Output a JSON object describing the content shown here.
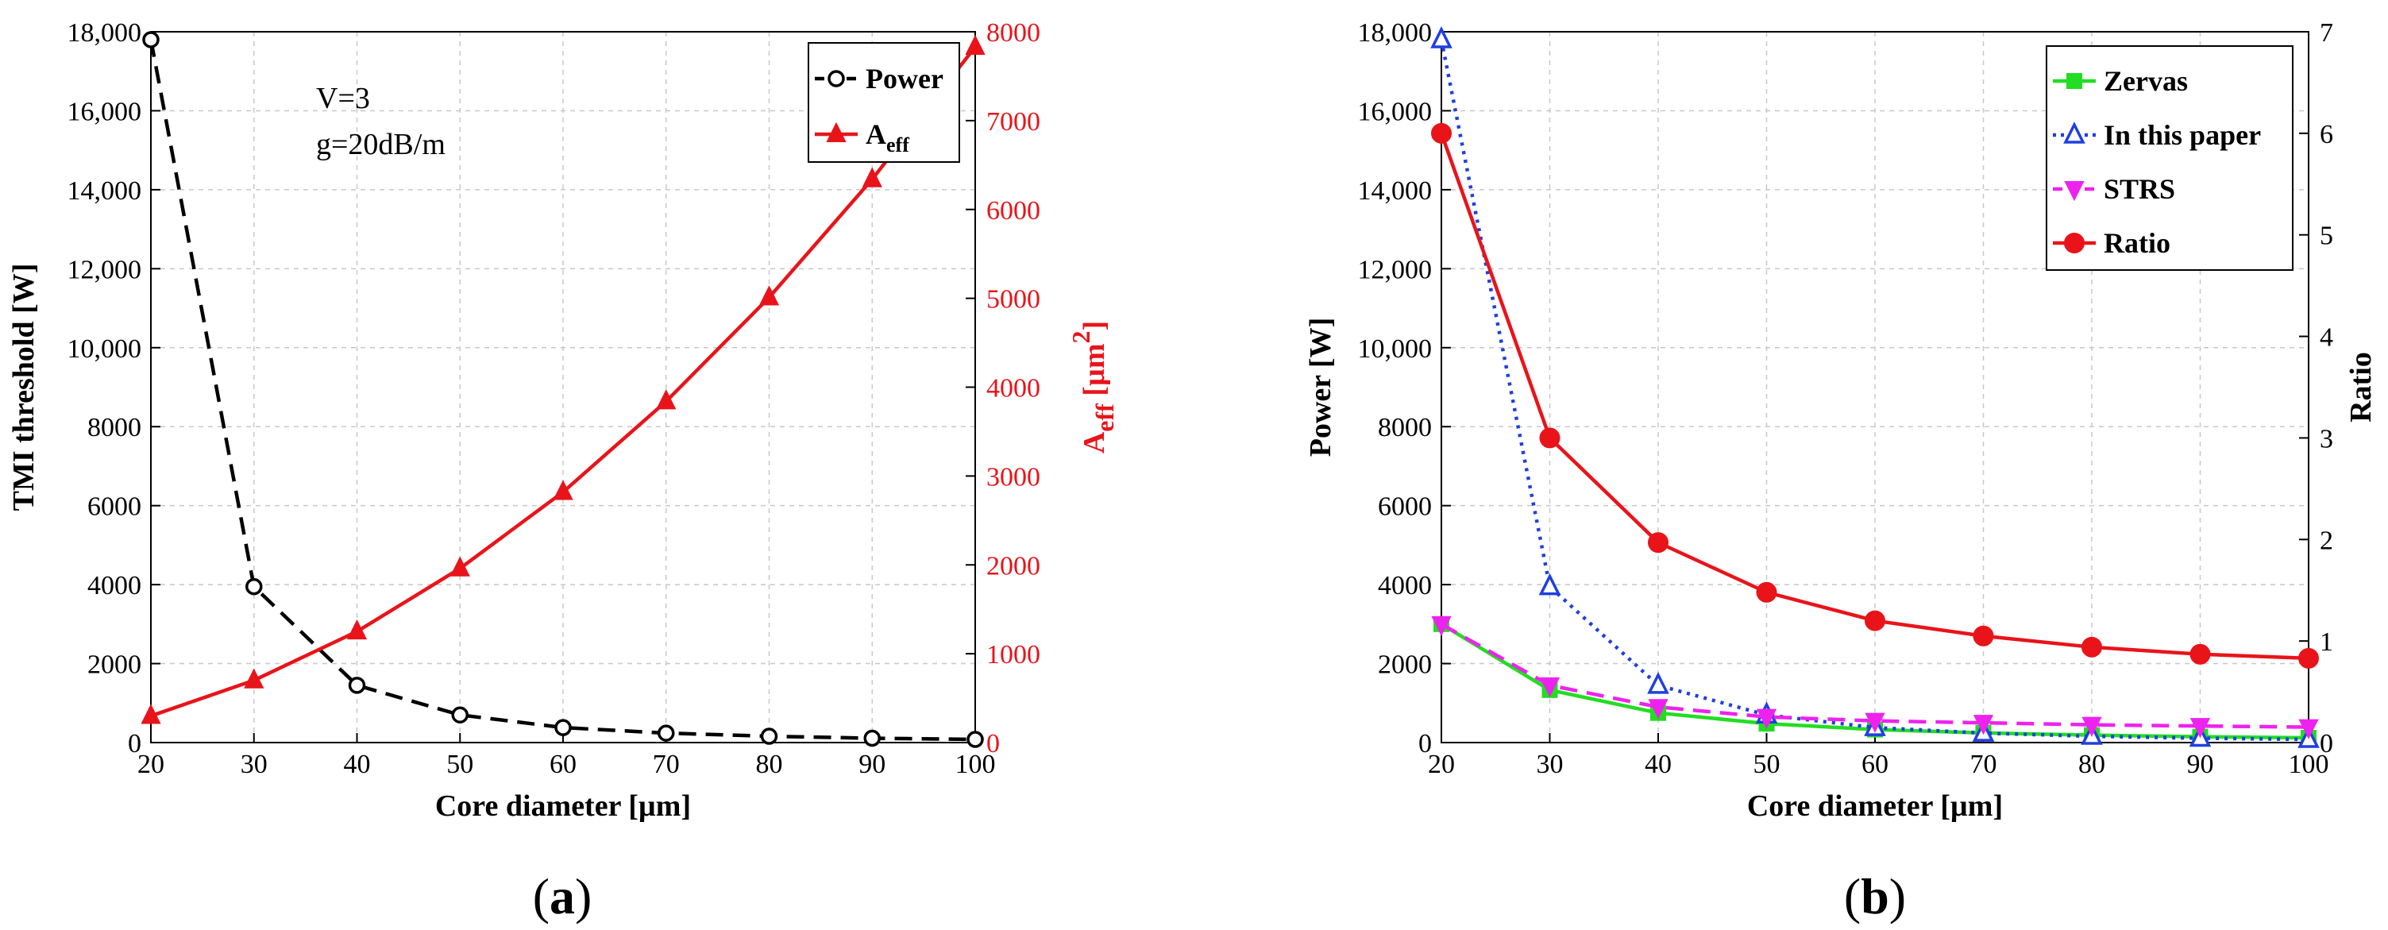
{
  "chart_data": [
    {
      "type": "line",
      "panel": "(a)",
      "caption_open": "(",
      "caption_letter": "a",
      "caption_close": ")",
      "xlabel": "Core diameter [µm]",
      "ylabel": "TMI threshold [W]",
      "ylabel_right_base": "A",
      "ylabel_right_sub": "eff",
      "ylabel_right_unit": " [µm",
      "ylabel_right_sup": "2",
      "ylabel_right_close": "]",
      "x": [
        20,
        30,
        40,
        50,
        60,
        70,
        80,
        90,
        100
      ],
      "xlim": [
        20,
        100
      ],
      "ylim": [
        0,
        18000
      ],
      "ylim_right": [
        0,
        8000
      ],
      "xticks": [
        "20",
        "30",
        "40",
        "50",
        "60",
        "70",
        "80",
        "90",
        "100"
      ],
      "yticks": [
        "0",
        "2000",
        "4000",
        "6000",
        "8000",
        "10,000",
        "12,000",
        "14,000",
        "16,000",
        "18,000"
      ],
      "yticks_right": [
        "0",
        "1000",
        "2000",
        "3000",
        "4000",
        "5000",
        "6000",
        "7000",
        "8000"
      ],
      "annotations": [
        "V=3",
        "g=20dB/m"
      ],
      "legend_position": "top-right",
      "series": [
        {
          "name": "Power",
          "axis": "left",
          "color": "#000000",
          "marker": "open-circle",
          "style": "dashed",
          "values": [
            17800,
            3950,
            1450,
            700,
            380,
            240,
            160,
            110,
            80
          ]
        },
        {
          "name_base": "A",
          "name_sub": "eff",
          "axis": "right",
          "color": "#e8141a",
          "marker": "filled-triangle-up",
          "style": "solid",
          "values": [
            300,
            700,
            1250,
            1960,
            2820,
            3840,
            5010,
            6340,
            7830
          ]
        }
      ],
      "grid": true
    },
    {
      "type": "line",
      "panel": "(b)",
      "caption_open": "(",
      "caption_letter": "b",
      "caption_close": ")",
      "xlabel": "Core diameter [µm]",
      "ylabel": "Power [W]",
      "ylabel_right": "Ratio",
      "x": [
        20,
        30,
        40,
        50,
        60,
        70,
        80,
        90,
        100
      ],
      "xlim": [
        20,
        100
      ],
      "ylim": [
        0,
        18000
      ],
      "ylim_right": [
        0,
        7
      ],
      "xticks": [
        "20",
        "30",
        "40",
        "50",
        "60",
        "70",
        "80",
        "90",
        "100"
      ],
      "yticks": [
        "0",
        "2000",
        "4000",
        "6000",
        "8000",
        "10,000",
        "12,000",
        "14,000",
        "16,000",
        "18,000"
      ],
      "yticks_right": [
        "0",
        "1",
        "2",
        "3",
        "4",
        "5",
        "6",
        "7"
      ],
      "legend_position": "top-right",
      "series": [
        {
          "name": "Zervas",
          "axis": "left",
          "color": "#22dd22",
          "marker": "filled-square",
          "style": "solid",
          "values": [
            3000,
            1330,
            750,
            480,
            330,
            245,
            188,
            148,
            120
          ]
        },
        {
          "name": "In this paper",
          "axis": "left",
          "color": "#1f3fe0",
          "marker": "open-triangle-up",
          "style": "dotted",
          "values": [
            17800,
            3950,
            1450,
            700,
            380,
            240,
            160,
            110,
            80
          ]
        },
        {
          "name": "STRS",
          "axis": "left",
          "color": "#ee22ee",
          "marker": "filled-triangle-down",
          "style": "dashed",
          "values": [
            3000,
            1450,
            900,
            650,
            550,
            500,
            450,
            420,
            390
          ]
        },
        {
          "name": "Ratio",
          "axis": "right",
          "color": "#e8141a",
          "marker": "filled-circle",
          "style": "solid",
          "values": [
            6.0,
            3.0,
            1.97,
            1.48,
            1.2,
            1.05,
            0.94,
            0.87,
            0.83
          ]
        }
      ],
      "grid": true
    }
  ]
}
